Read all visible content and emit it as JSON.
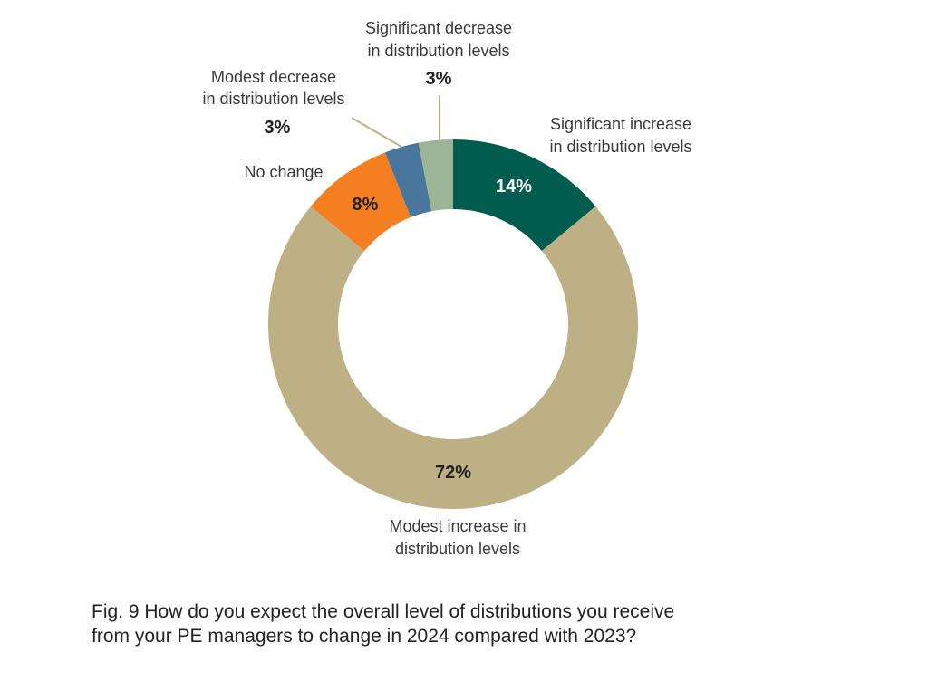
{
  "chart_data": {
    "type": "pie",
    "subtype": "donut",
    "title": "Fig. 9 How do you expect the overall level of distributions you receive from your PE managers to change in 2024 compared with 2023?",
    "unit": "%",
    "slices": [
      {
        "label": "Significant increase in distribution levels",
        "label_lines": [
          "Significant increase",
          "in distribution levels"
        ],
        "value": 14,
        "display": "14%",
        "color": "#005c4e",
        "text_color": "#ffffff"
      },
      {
        "label": "Modest increase in distribution levels",
        "label_lines": [
          "Modest increase in",
          "distribution levels"
        ],
        "value": 72,
        "display": "72%",
        "color": "#bdb084",
        "text_color": "#222222"
      },
      {
        "label": "No change",
        "label_lines": [
          "No change"
        ],
        "value": 8,
        "display": "8%",
        "color": "#f47f20",
        "text_color": "#222222"
      },
      {
        "label": "Modest decrease in distribution levels",
        "label_lines": [
          "Modest decrease",
          "in distribution levels"
        ],
        "value": 3,
        "display": "3%",
        "color": "#49769c",
        "text_color": "#222222"
      },
      {
        "label": "Significant decrease in distribution levels",
        "label_lines": [
          "Significant decrease",
          "in distribution levels"
        ],
        "value": 3,
        "display": "3%",
        "color": "#9cb596",
        "text_color": "#222222"
      }
    ],
    "start": "top",
    "direction": "clockwise",
    "leader_line_color": "#bdb084"
  },
  "caption": {
    "line1": "Fig. 9 How do you expect the overall level of distributions you receive",
    "line2": "from your PE managers to change in 2024 compared with 2023?"
  }
}
